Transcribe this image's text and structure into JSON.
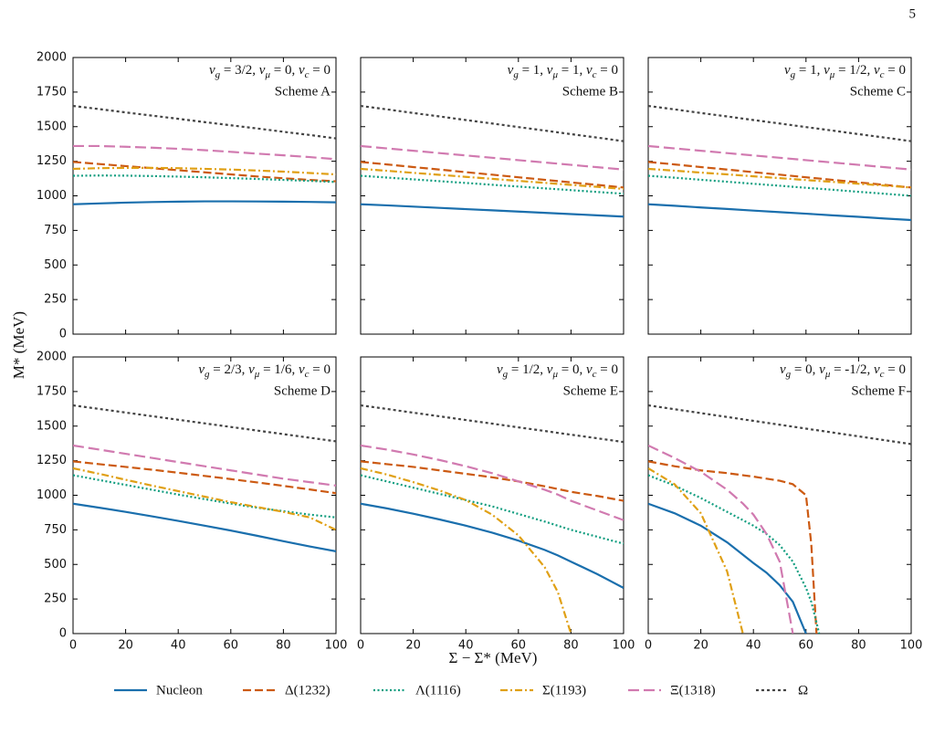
{
  "page_number": "5",
  "xlabel": "Σ − Σ* (MeV)",
  "ylabel": "M* (MeV)",
  "legend": [
    {
      "name": "Nucleon",
      "color": "#1a6fad",
      "linestyle": "solid"
    },
    {
      "name": "Δ(1232)",
      "color": "#cc5a12",
      "linestyle": "dashed"
    },
    {
      "name": "Λ(1116)",
      "color": "#129e80",
      "linestyle": "dotted"
    },
    {
      "name": "Σ(1193)",
      "color": "#e0a015",
      "linestyle": "dashdot"
    },
    {
      "name": "Ξ(1318)",
      "color": "#d17ab0",
      "linestyle": "longdash"
    },
    {
      "name": "Ω",
      "color": "#444444",
      "linestyle": "densedot"
    }
  ],
  "chart_data": [
    {
      "type": "line",
      "params": [
        [
          "ν",
          "g",
          " = 3/2,  "
        ],
        [
          "ν",
          "μ",
          " = 0,  "
        ],
        [
          "ν",
          "c",
          " = 0"
        ]
      ],
      "scheme": "Scheme A",
      "xlim": [
        0,
        100
      ],
      "ylim": [
        0,
        2000
      ],
      "xticks": [
        0,
        20,
        40,
        60,
        80,
        100
      ],
      "yticks": [
        0,
        250,
        500,
        750,
        1000,
        1250,
        1500,
        1750,
        2000
      ],
      "x": [
        0,
        10,
        20,
        30,
        40,
        50,
        60,
        70,
        80,
        90,
        100
      ],
      "series": [
        {
          "values": [
            939,
            945,
            951,
            955,
            958,
            960,
            960,
            959,
            958,
            956,
            953
          ]
        },
        {
          "values": [
            1245,
            1230,
            1215,
            1200,
            1185,
            1170,
            1155,
            1140,
            1127,
            1115,
            1105
          ]
        },
        {
          "values": [
            1145,
            1147,
            1146,
            1143,
            1139,
            1134,
            1128,
            1122,
            1115,
            1108,
            1100
          ]
        },
        {
          "values": [
            1195,
            1200,
            1202,
            1202,
            1200,
            1195,
            1190,
            1183,
            1175,
            1165,
            1155
          ]
        },
        {
          "values": [
            1360,
            1360,
            1355,
            1348,
            1340,
            1330,
            1318,
            1305,
            1293,
            1280,
            1265
          ]
        },
        {
          "values": [
            1650,
            1627,
            1603,
            1580,
            1557,
            1533,
            1510,
            1487,
            1463,
            1440,
            1415
          ]
        }
      ]
    },
    {
      "type": "line",
      "params": [
        [
          "ν",
          "g",
          " = 1,  "
        ],
        [
          "ν",
          "μ",
          " = 1,  "
        ],
        [
          "ν",
          "c",
          " = 0"
        ]
      ],
      "scheme": "Scheme B",
      "xlim": [
        0,
        100
      ],
      "ylim": [
        0,
        2000
      ],
      "xticks": [
        0,
        20,
        40,
        60,
        80,
        100
      ],
      "yticks": [
        0,
        250,
        500,
        750,
        1000,
        1250,
        1500,
        1750,
        2000
      ],
      "x": [
        0,
        10,
        20,
        30,
        40,
        50,
        60,
        70,
        80,
        90,
        100
      ],
      "series": [
        {
          "values": [
            939,
            931,
            922,
            913,
            904,
            895,
            886,
            877,
            868,
            859,
            850
          ]
        },
        {
          "values": [
            1245,
            1227,
            1208,
            1190,
            1171,
            1153,
            1134,
            1116,
            1097,
            1079,
            1060
          ]
        },
        {
          "values": [
            1145,
            1132,
            1119,
            1106,
            1093,
            1080,
            1067,
            1054,
            1041,
            1028,
            1015
          ]
        },
        {
          "values": [
            1195,
            1181,
            1166,
            1152,
            1137,
            1123,
            1108,
            1094,
            1079,
            1065,
            1050
          ]
        },
        {
          "values": [
            1360,
            1343,
            1326,
            1309,
            1292,
            1275,
            1258,
            1241,
            1224,
            1207,
            1190
          ]
        },
        {
          "values": [
            1650,
            1625,
            1599,
            1574,
            1548,
            1523,
            1497,
            1472,
            1446,
            1421,
            1395
          ]
        }
      ]
    },
    {
      "type": "line",
      "params": [
        [
          "ν",
          "g",
          " = 1,  "
        ],
        [
          "ν",
          "μ",
          " = 1/2,  "
        ],
        [
          "ν",
          "c",
          " = 0"
        ]
      ],
      "scheme": "Scheme C",
      "xlim": [
        0,
        100
      ],
      "ylim": [
        0,
        2000
      ],
      "xticks": [
        0,
        20,
        40,
        60,
        80,
        100
      ],
      "yticks": [
        0,
        250,
        500,
        750,
        1000,
        1250,
        1500,
        1750,
        2000
      ],
      "x": [
        0,
        10,
        20,
        30,
        40,
        50,
        60,
        70,
        80,
        90,
        100
      ],
      "series": [
        {
          "values": [
            939,
            928,
            916,
            905,
            893,
            882,
            871,
            859,
            848,
            836,
            825
          ]
        },
        {
          "values": [
            1245,
            1227,
            1208,
            1190,
            1171,
            1153,
            1134,
            1116,
            1097,
            1079,
            1060
          ]
        },
        {
          "values": [
            1145,
            1131,
            1116,
            1102,
            1087,
            1073,
            1058,
            1044,
            1029,
            1015,
            1000
          ]
        },
        {
          "values": [
            1195,
            1182,
            1168,
            1155,
            1141,
            1128,
            1114,
            1101,
            1087,
            1074,
            1060
          ]
        },
        {
          "values": [
            1360,
            1343,
            1326,
            1309,
            1292,
            1275,
            1258,
            1241,
            1224,
            1207,
            1190
          ]
        },
        {
          "values": [
            1650,
            1625,
            1599,
            1574,
            1548,
            1523,
            1497,
            1472,
            1446,
            1421,
            1395
          ]
        }
      ]
    },
    {
      "type": "line",
      "params": [
        [
          "ν",
          "g",
          " = 2/3,  "
        ],
        [
          "ν",
          "μ",
          " = 1/6,  "
        ],
        [
          "ν",
          "c",
          " = 0"
        ]
      ],
      "scheme": "Scheme D",
      "xlim": [
        0,
        100
      ],
      "ylim": [
        0,
        2000
      ],
      "xticks": [
        0,
        20,
        40,
        60,
        80,
        100
      ],
      "yticks": [
        0,
        250,
        500,
        750,
        1000,
        1250,
        1500,
        1750,
        2000
      ],
      "x": [
        0,
        10,
        20,
        30,
        40,
        50,
        60,
        70,
        80,
        90,
        100
      ],
      "series": [
        {
          "values": [
            939,
            910,
            880,
            848,
            815,
            780,
            745,
            707,
            668,
            630,
            595
          ]
        },
        {
          "values": [
            1245,
            1225,
            1205,
            1185,
            1163,
            1140,
            1117,
            1093,
            1068,
            1042,
            1015
          ]
        },
        {
          "values": [
            1145,
            1110,
            1075,
            1040,
            1005,
            972,
            940,
            910,
            885,
            860,
            840
          ]
        },
        {
          "values": [
            1195,
            1155,
            1112,
            1070,
            1030,
            990,
            950,
            915,
            880,
            840,
            750
          ]
        },
        {
          "values": [
            1360,
            1330,
            1300,
            1270,
            1240,
            1210,
            1180,
            1150,
            1120,
            1095,
            1070
          ]
        },
        {
          "values": [
            1650,
            1624,
            1598,
            1572,
            1546,
            1520,
            1494,
            1468,
            1442,
            1416,
            1390
          ]
        }
      ]
    },
    {
      "type": "line",
      "params": [
        [
          "ν",
          "g",
          " = 1/2,  "
        ],
        [
          "ν",
          "μ",
          " = 0,  "
        ],
        [
          "ν",
          "c",
          " = 0"
        ]
      ],
      "scheme": "Scheme E",
      "xlim": [
        0,
        100
      ],
      "ylim": [
        0,
        2000
      ],
      "xticks": [
        0,
        20,
        40,
        60,
        80,
        100
      ],
      "yticks": [
        0,
        250,
        500,
        750,
        1000,
        1250,
        1500,
        1750,
        2000
      ],
      "x": [
        0,
        10,
        20,
        30,
        40,
        50,
        60,
        70,
        75,
        80,
        90,
        100
      ],
      "series": [
        {
          "values": [
            939,
            905,
            867,
            825,
            780,
            730,
            672,
            605,
            565,
            520,
            430,
            330
          ]
        },
        {
          "values": [
            1245,
            1225,
            1205,
            1180,
            1155,
            1130,
            1100,
            1065,
            1045,
            1025,
            995,
            960
          ]
        },
        {
          "values": [
            1145,
            1100,
            1055,
            1010,
            965,
            920,
            865,
            810,
            780,
            750,
            700,
            650
          ]
        },
        {
          "values": [
            1195,
            1150,
            1095,
            1035,
            965,
            860,
            710,
            480,
            300,
            0,
            null,
            null
          ]
        },
        {
          "values": [
            1360,
            1330,
            1295,
            1255,
            1210,
            1160,
            1100,
            1040,
            1005,
            960,
            890,
            820
          ]
        },
        {
          "values": [
            1650,
            1624,
            1597,
            1571,
            1544,
            1518,
            1491,
            1465,
            1451,
            1438,
            1412,
            1385
          ]
        }
      ]
    },
    {
      "type": "line",
      "params": [
        [
          "ν",
          "g",
          " = 0,  "
        ],
        [
          "ν",
          "μ",
          " = -1/2,  "
        ],
        [
          "ν",
          "c",
          " = 0"
        ]
      ],
      "scheme": "Scheme F",
      "xlim": [
        0,
        100
      ],
      "ylim": [
        0,
        2000
      ],
      "xticks": [
        0,
        20,
        40,
        60,
        80,
        100
      ],
      "yticks": [
        0,
        250,
        500,
        750,
        1000,
        1250,
        1500,
        1750,
        2000
      ],
      "x": [
        0,
        10,
        20,
        30,
        36,
        40,
        45,
        50,
        55,
        60,
        62,
        64,
        65,
        70,
        80,
        90,
        100
      ],
      "series": [
        {
          "values": [
            939,
            870,
            780,
            660,
            570,
            510,
            440,
            350,
            230,
            0,
            null,
            null,
            null,
            null,
            null,
            null,
            null
          ]
        },
        {
          "values": [
            1245,
            1210,
            1180,
            1160,
            1145,
            1135,
            1120,
            1105,
            1080,
            1000,
            650,
            0,
            null,
            null,
            null,
            null,
            null
          ]
        },
        {
          "values": [
            1145,
            1070,
            980,
            880,
            820,
            780,
            720,
            640,
            520,
            330,
            230,
            80,
            0,
            null,
            null,
            null,
            null
          ]
        },
        {
          "values": [
            1195,
            1080,
            870,
            450,
            0,
            null,
            null,
            null,
            null,
            null,
            null,
            null,
            null,
            null,
            null,
            null,
            null
          ]
        },
        {
          "values": [
            1360,
            1270,
            1170,
            1040,
            940,
            860,
            720,
            520,
            0,
            null,
            null,
            null,
            null,
            null,
            null,
            null,
            null
          ]
        },
        {
          "values": [
            1650,
            1622,
            1594,
            1566,
            1549,
            1538,
            1524,
            1510,
            1496,
            1482,
            1476,
            1471,
            1468,
            1454,
            1426,
            1398,
            1370
          ]
        }
      ]
    }
  ]
}
